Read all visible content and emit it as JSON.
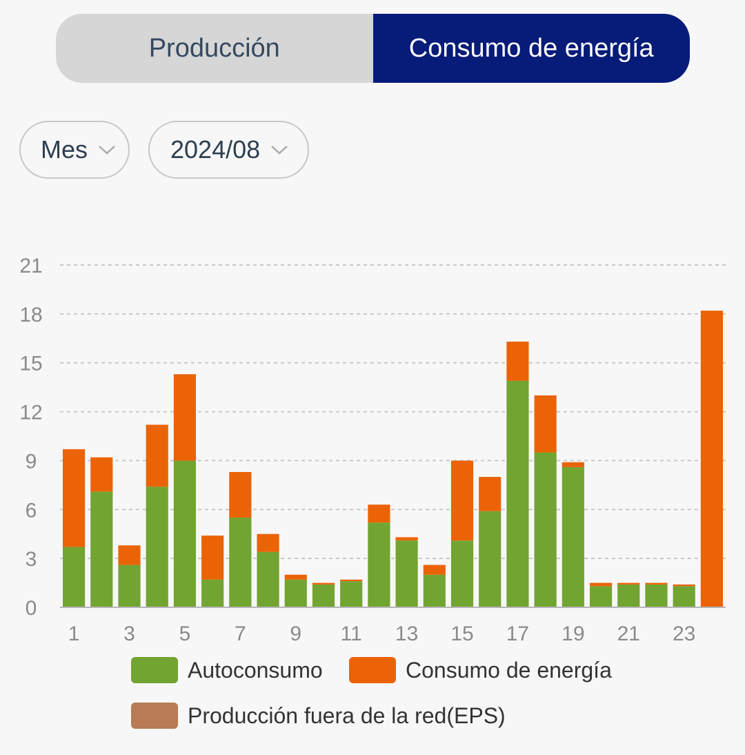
{
  "tabs": {
    "production_label": "Producción",
    "consumption_label": "Consumo de energía",
    "active": "consumption"
  },
  "filters": {
    "period": "Mes",
    "month": "2024/08",
    "dropdown_icon": "chevron-down-icon"
  },
  "colors": {
    "autoconsumo": "#72a431",
    "consumo": "#eb6307",
    "eps": "#b87b55",
    "active_tab": "#071b79",
    "inactive_tab": "#d6d6d6"
  },
  "chart_data": {
    "type": "bar",
    "stacked": true,
    "x": [
      1,
      2,
      3,
      4,
      5,
      6,
      7,
      8,
      9,
      10,
      11,
      12,
      13,
      14,
      15,
      16,
      17,
      18,
      19,
      20,
      21,
      22,
      23,
      24
    ],
    "x_tick_labels": [
      "1",
      "3",
      "5",
      "7",
      "9",
      "11",
      "13",
      "15",
      "17",
      "19",
      "21",
      "23"
    ],
    "y_ticks": [
      0,
      3,
      6,
      9,
      12,
      15,
      18,
      21
    ],
    "ylim": [
      0,
      21
    ],
    "grid": true,
    "series": [
      {
        "name": "Autoconsumo",
        "values": [
          3.7,
          7.1,
          2.6,
          7.4,
          9.0,
          1.7,
          5.5,
          3.4,
          1.7,
          1.4,
          1.6,
          5.2,
          4.1,
          2.0,
          4.1,
          5.9,
          13.9,
          9.5,
          8.6,
          1.3,
          1.4,
          1.4,
          1.3,
          0
        ]
      },
      {
        "name": "Consumo de energía",
        "values": [
          6.0,
          2.1,
          1.2,
          3.8,
          5.3,
          2.7,
          2.8,
          1.1,
          0.3,
          0.1,
          0.1,
          1.1,
          0.2,
          0.6,
          4.9,
          2.1,
          2.4,
          3.5,
          0.3,
          0.2,
          0.1,
          0.1,
          0.1,
          18.2
        ]
      },
      {
        "name": "Producción fuera de la red(EPS)",
        "values": [
          0,
          0,
          0,
          0,
          0,
          0,
          0,
          0,
          0,
          0,
          0,
          0,
          0,
          0,
          0,
          0,
          0,
          0,
          0,
          0,
          0,
          0,
          0,
          0
        ]
      }
    ],
    "legend": [
      "Autoconsumo",
      "Consumo de energía",
      "Producción fuera de la red(EPS)"
    ],
    "legend_position": "bottom"
  }
}
